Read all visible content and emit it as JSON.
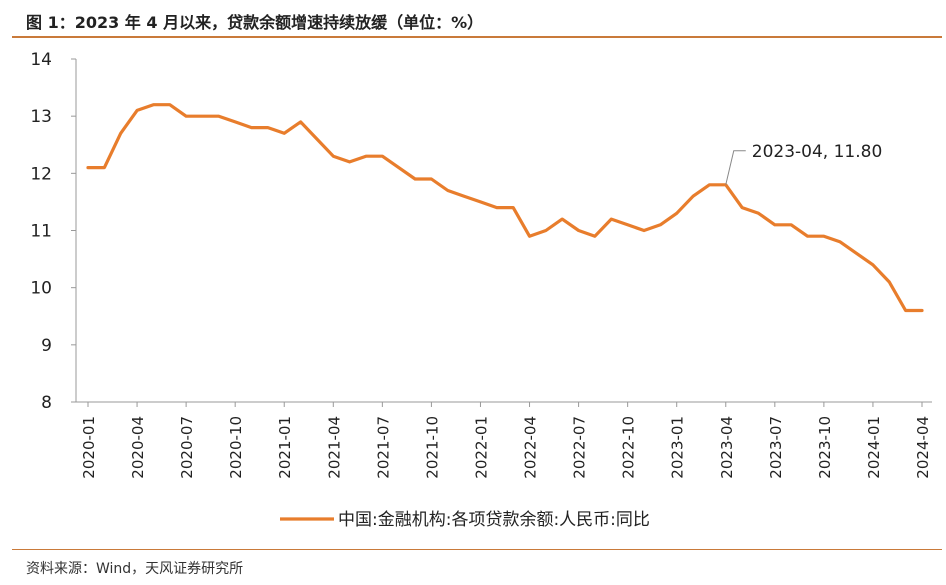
{
  "header": {
    "title": "图 1：2023 年 4 月以来，贷款余额增速持续放缓（单位：%）"
  },
  "footer": {
    "source": "资料来源：Wind，天风证券研究所"
  },
  "chart_data": {
    "type": "line",
    "title": "图 1：2023 年 4 月以来，贷款余额增速持续放缓（单位：%）",
    "ylim": [
      8,
      14
    ],
    "yticks": [
      8,
      9,
      10,
      11,
      12,
      13,
      14
    ],
    "grid": false,
    "legend_position": "bottom-center",
    "xtick_labels": [
      "2020-01",
      "2020-04",
      "2020-07",
      "2020-10",
      "2021-01",
      "2021-04",
      "2021-07",
      "2021-10",
      "2022-01",
      "2022-04",
      "2022-07",
      "2022-10",
      "2023-01",
      "2023-04",
      "2023-07",
      "2023-10",
      "2024-01",
      "2024-04"
    ],
    "x": [
      "2020-01",
      "2020-02",
      "2020-03",
      "2020-04",
      "2020-05",
      "2020-06",
      "2020-07",
      "2020-08",
      "2020-09",
      "2020-10",
      "2020-11",
      "2020-12",
      "2021-01",
      "2021-02",
      "2021-03",
      "2021-04",
      "2021-05",
      "2021-06",
      "2021-07",
      "2021-08",
      "2021-09",
      "2021-10",
      "2021-11",
      "2021-12",
      "2022-01",
      "2022-02",
      "2022-03",
      "2022-04",
      "2022-05",
      "2022-06",
      "2022-07",
      "2022-08",
      "2022-09",
      "2022-10",
      "2022-11",
      "2022-12",
      "2023-01",
      "2023-02",
      "2023-03",
      "2023-04",
      "2023-05",
      "2023-06",
      "2023-07",
      "2023-08",
      "2023-09",
      "2023-10",
      "2023-11",
      "2023-12",
      "2024-01",
      "2024-02",
      "2024-03",
      "2024-04"
    ],
    "series": [
      {
        "name": "中国:金融机构:各项贷款余额:人民币:同比",
        "color": "#e87d2c",
        "values": [
          12.1,
          12.1,
          12.7,
          13.1,
          13.2,
          13.2,
          13.0,
          13.0,
          13.0,
          12.9,
          12.8,
          12.8,
          12.7,
          12.9,
          12.6,
          12.3,
          12.2,
          12.3,
          12.3,
          12.1,
          11.9,
          11.9,
          11.7,
          11.6,
          11.5,
          11.4,
          11.4,
          10.9,
          11.0,
          11.2,
          11.0,
          10.9,
          11.2,
          11.1,
          11.0,
          11.1,
          11.3,
          11.6,
          11.8,
          11.8,
          11.4,
          11.3,
          11.1,
          11.1,
          10.9,
          10.9,
          10.8,
          10.6,
          10.4,
          10.1,
          9.6,
          9.6
        ]
      }
    ],
    "annotation": {
      "text": "2023-04, 11.80",
      "x": "2023-04",
      "y": 11.8
    }
  }
}
